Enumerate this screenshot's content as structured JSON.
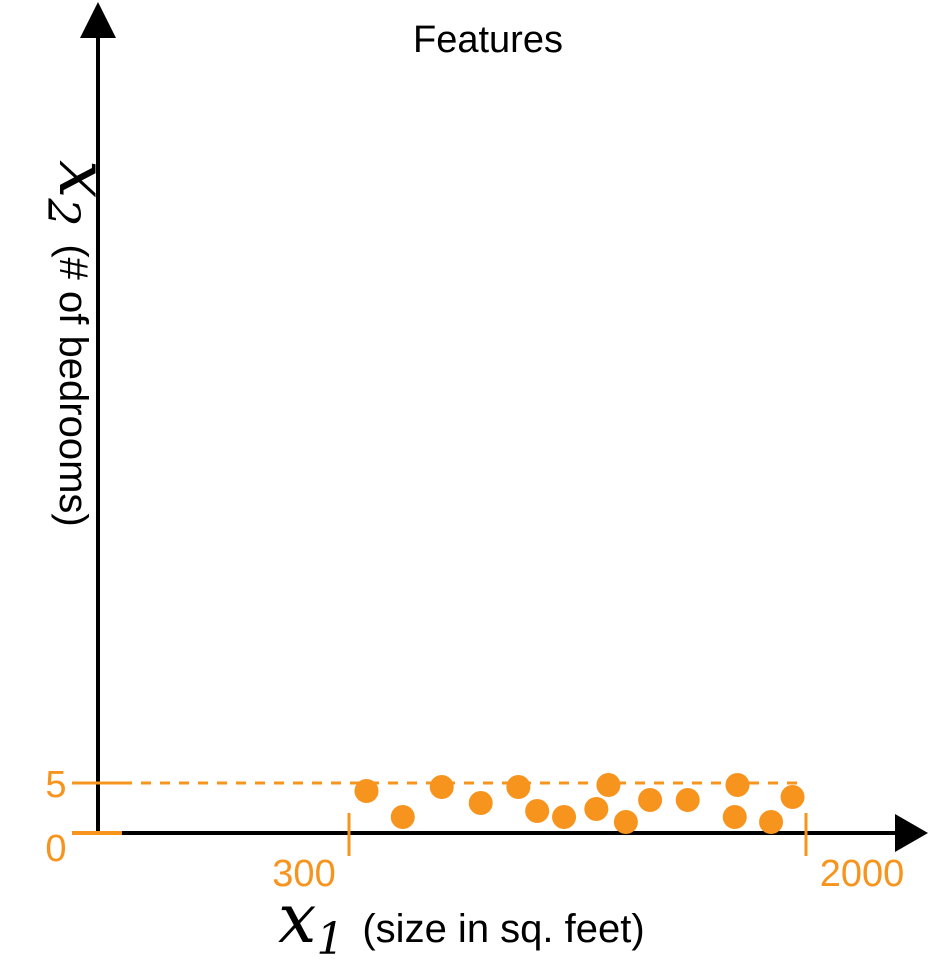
{
  "colors": {
    "axis": "#000000",
    "accent": "#F7941D"
  },
  "chart_data": {
    "type": "scatter",
    "title": "Features",
    "xlabel": {
      "var": "x",
      "sub": "1",
      "text": "(size in sq. feet)"
    },
    "ylabel": {
      "var": "x",
      "sub": "2",
      "text": "(# of bedrooms)"
    },
    "x_ticks": [
      "300",
      "2000"
    ],
    "y_ticks": [
      "0",
      "5"
    ],
    "xlim": [
      0,
      2300
    ],
    "ylim": [
      0,
      50
    ],
    "points": [
      {
        "x": 365,
        "y": 4.2
      },
      {
        "x": 500,
        "y": 1.6
      },
      {
        "x": 645,
        "y": 4.6
      },
      {
        "x": 790,
        "y": 3.0
      },
      {
        "x": 930,
        "y": 4.6
      },
      {
        "x": 1000,
        "y": 2.2
      },
      {
        "x": 1100,
        "y": 1.6
      },
      {
        "x": 1220,
        "y": 2.4
      },
      {
        "x": 1265,
        "y": 4.8
      },
      {
        "x": 1330,
        "y": 1.1
      },
      {
        "x": 1420,
        "y": 3.3
      },
      {
        "x": 1560,
        "y": 3.3
      },
      {
        "x": 1745,
        "y": 4.8
      },
      {
        "x": 1735,
        "y": 1.6
      },
      {
        "x": 1870,
        "y": 1.1
      },
      {
        "x": 1950,
        "y": 3.6
      }
    ]
  }
}
